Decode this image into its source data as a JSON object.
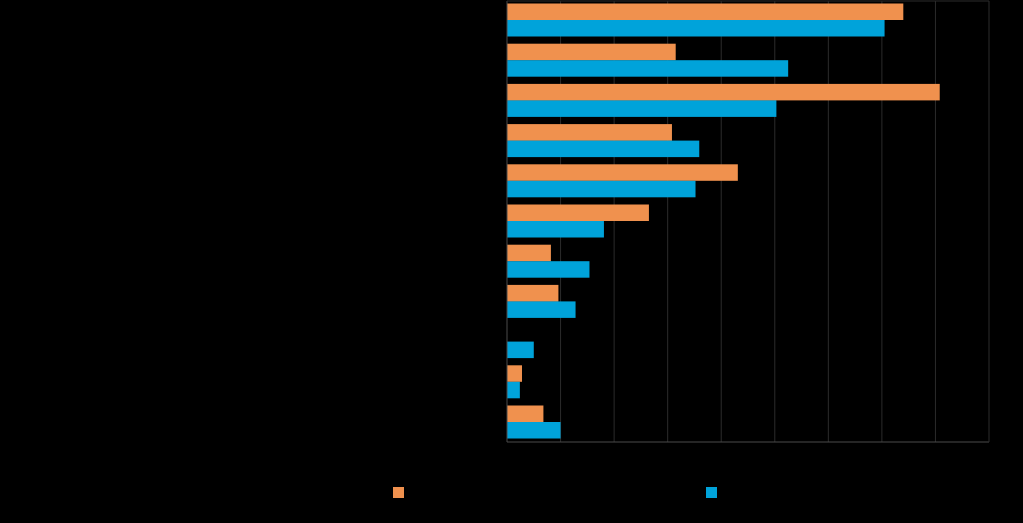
{
  "colors": {
    "background": "#000000",
    "series_a": "#F0914E",
    "series_b": "#00A3DA",
    "gridline": "#2B2B2B",
    "axis": "#4A4A4A"
  },
  "chart_data": {
    "type": "bar",
    "orientation": "horizontal",
    "title": "",
    "xlabel": "",
    "ylabel": "",
    "xlim": [
      0,
      9
    ],
    "grid": true,
    "legend_position": "bottom",
    "categories": [
      "",
      "",
      "",
      "",
      "",
      "",
      "",
      "",
      "",
      "",
      ""
    ],
    "series": [
      {
        "name": "",
        "color": "#F0914E",
        "values": [
          7.4,
          3.15,
          8.08,
          3.08,
          4.31,
          2.65,
          0.82,
          0.96,
          0,
          0.28,
          0.68
        ]
      },
      {
        "name": "",
        "color": "#00A3DA",
        "values": [
          7.05,
          5.25,
          5.03,
          3.59,
          3.52,
          1.81,
          1.54,
          1.28,
          0.5,
          0.24,
          1.0
        ]
      }
    ]
  }
}
